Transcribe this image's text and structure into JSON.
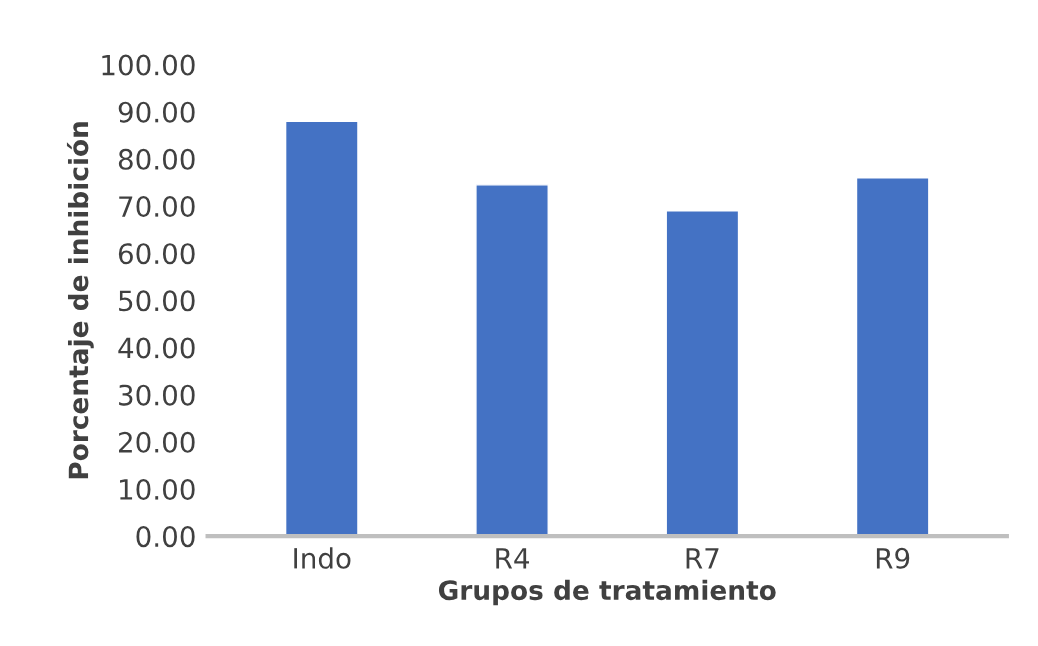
{
  "chart_data": {
    "type": "bar",
    "xlabel": "Grupos de tratamiento",
    "ylabel": "Porcentaje de inhibición",
    "categories": [
      "Indo",
      "R4",
      "R7",
      "R9"
    ],
    "values": [
      88,
      74.5,
      69,
      76
    ],
    "color": "#4472c4",
    "ylim": [
      0,
      100
    ],
    "yticks": [
      {
        "value": 0,
        "label": "0.00"
      },
      {
        "value": 10,
        "label": "10.00"
      },
      {
        "value": 20,
        "label": "20.00"
      },
      {
        "value": 30,
        "label": "30.00"
      },
      {
        "value": 40,
        "label": "40.00"
      },
      {
        "value": 50,
        "label": "50.00"
      },
      {
        "value": 60,
        "label": "60.00"
      },
      {
        "value": 70,
        "label": "70.00"
      },
      {
        "value": 80,
        "label": "80.00"
      },
      {
        "value": 90,
        "label": "90.00"
      },
      {
        "value": 100,
        "label": "100.00"
      }
    ],
    "grid": false
  }
}
